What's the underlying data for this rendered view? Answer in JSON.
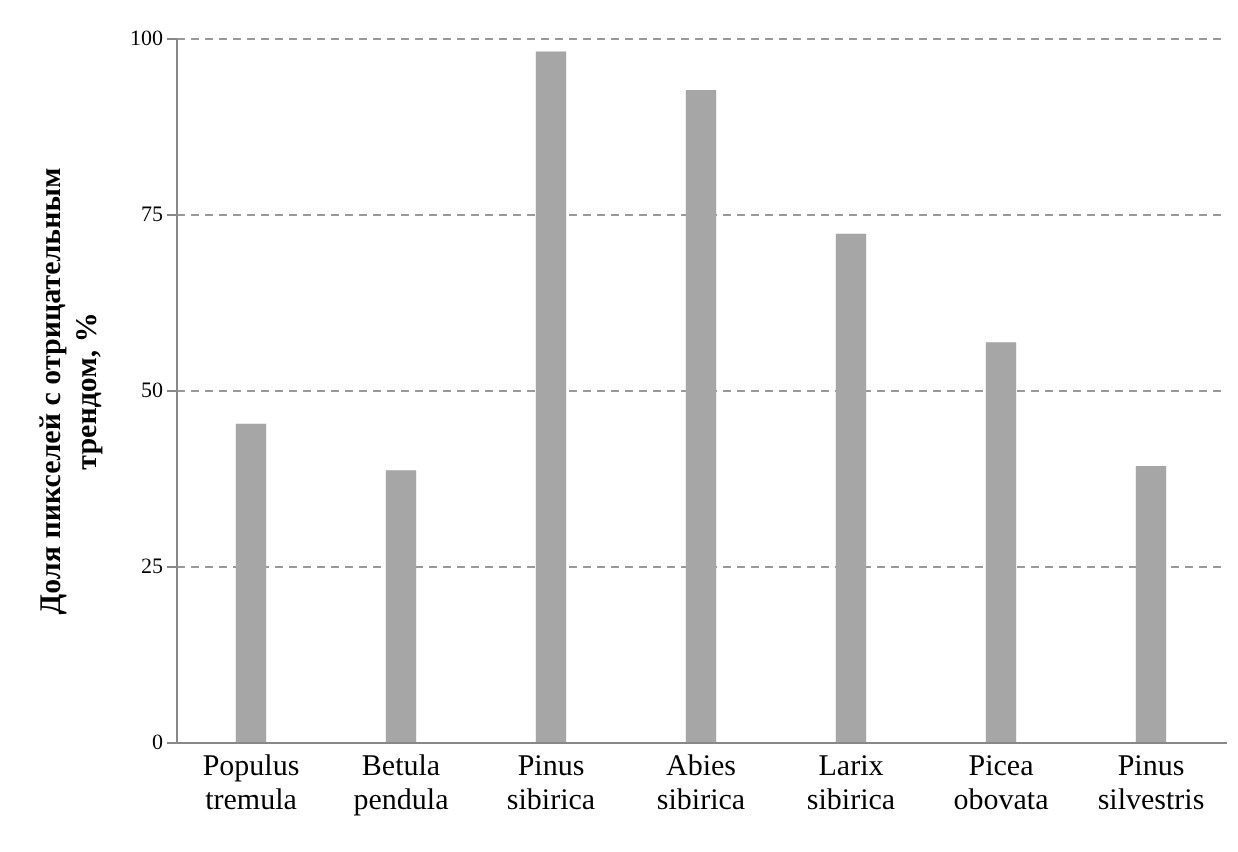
{
  "chart_data": {
    "type": "bar",
    "ylabel": "Доля пикселей  с отрицательным трендом, %",
    "categories": [
      "Populus tremula",
      "Betula pendula",
      "Pinus sibirica",
      "Abies sibirica",
      "Larix sibirica",
      "Picea obovata",
      "Pinus silvestris"
    ],
    "values": [
      45.2,
      38.6,
      98.1,
      92.6,
      72.2,
      56.8,
      39.2
    ],
    "color": "#a6a6a6",
    "ylim": [
      0,
      100
    ],
    "yticks": [
      0,
      25,
      50,
      75,
      100
    ],
    "grid": "y"
  }
}
